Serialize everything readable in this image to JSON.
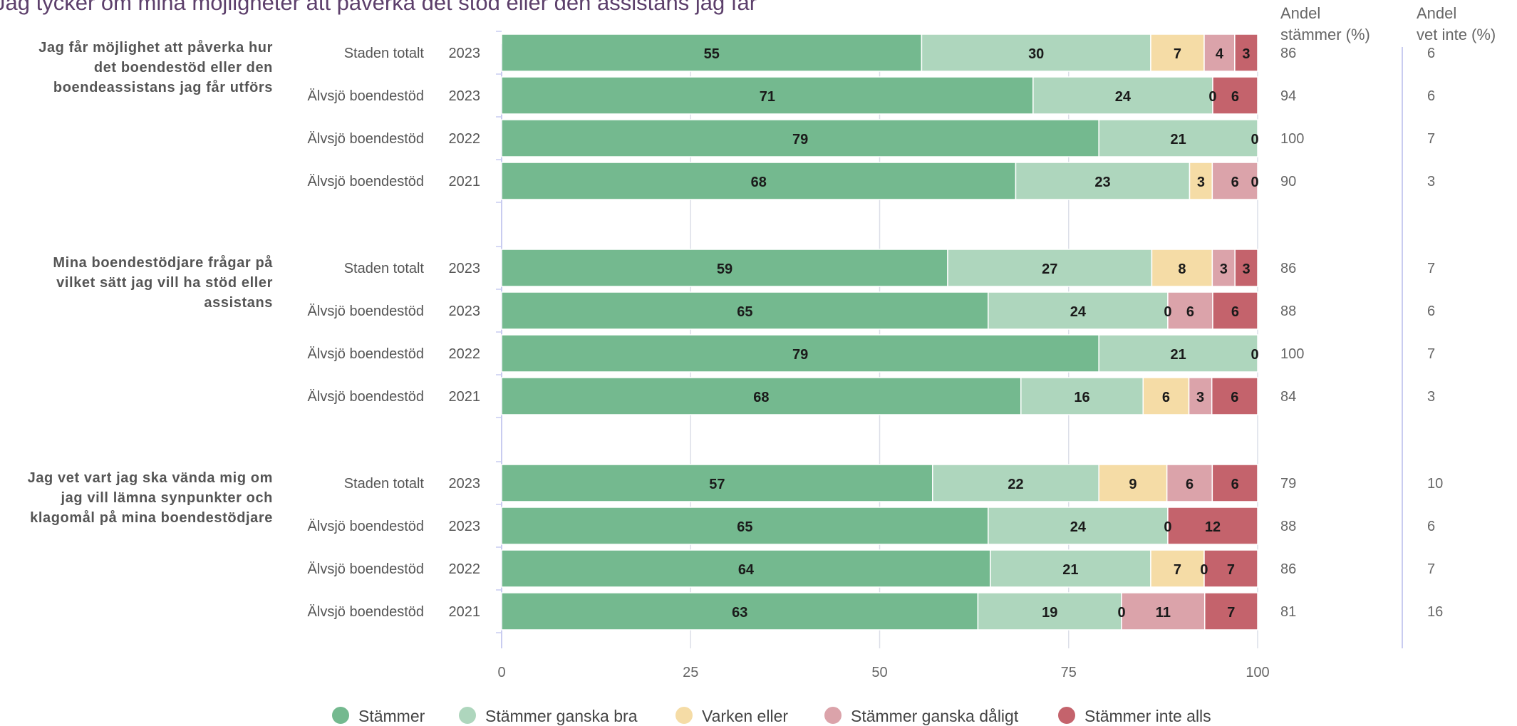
{
  "chart_data": {
    "type": "bar",
    "orientation": "horizontal",
    "stacked": true,
    "title": "Jag tycker om mina möjligheter att påverka det stöd eller den assistans jag får",
    "xlim": [
      0,
      100
    ],
    "x_ticks": [
      "0",
      "25",
      "50",
      "75",
      "100"
    ],
    "grid": true,
    "legend_position": "bottom",
    "series": [
      {
        "name": "Stämmer",
        "color": "#74b98f"
      },
      {
        "name": "Stämmer ganska bra",
        "color": "#aed6bd"
      },
      {
        "name": "Varken eller",
        "color": "#f5dca6"
      },
      {
        "name": "Stämmer ganska dåligt",
        "color": "#dba3aa"
      },
      {
        "name": "Stämmer inte alls",
        "color": "#c4636c"
      }
    ],
    "columns": [
      {
        "line1": "Andel",
        "line2": "stämmer (%)"
      },
      {
        "line1": "Andel",
        "line2": "vet inte (%)"
      }
    ],
    "groups": [
      {
        "question": [
          "Jag får möjlighet att påverka hur",
          "det boendestöd eller den",
          "boendeassistans jag får utförs"
        ],
        "rows": [
          {
            "unit": "Staden totalt",
            "year": "2023",
            "values": [
              55,
              30,
              7,
              4,
              3
            ],
            "andel_stammer": "86",
            "andel_vet_inte": "6"
          },
          {
            "unit": "Älvsjö boendestöd",
            "year": "2023",
            "values": [
              71,
              24,
              0,
              0,
              6
            ],
            "labels": [
              "71",
              "24",
              "0",
              "",
              "6"
            ],
            "andel_stammer": "94",
            "andel_vet_inte": "6"
          },
          {
            "unit": "Älvsjö boendestöd",
            "year": "2022",
            "values": [
              79,
              21,
              0,
              0,
              0
            ],
            "labels": [
              "79",
              "21",
              "",
              "",
              "0"
            ],
            "andel_stammer": "100",
            "andel_vet_inte": "7"
          },
          {
            "unit": "Älvsjö boendestöd",
            "year": "2021",
            "values": [
              68,
              23,
              3,
              6,
              0
            ],
            "andel_stammer": "90",
            "andel_vet_inte": "3"
          }
        ]
      },
      {
        "question": [
          "Mina boendestödjare frågar på",
          "vilket sätt jag vill ha stöd eller",
          "assistans"
        ],
        "rows": [
          {
            "unit": "Staden totalt",
            "year": "2023",
            "values": [
              59,
              27,
              8,
              3,
              3
            ],
            "andel_stammer": "86",
            "andel_vet_inte": "7"
          },
          {
            "unit": "Älvsjö boendestöd",
            "year": "2023",
            "values": [
              65,
              24,
              0,
              6,
              6
            ],
            "andel_stammer": "88",
            "andel_vet_inte": "6"
          },
          {
            "unit": "Älvsjö boendestöd",
            "year": "2022",
            "values": [
              79,
              21,
              0,
              0,
              0
            ],
            "labels": [
              "79",
              "21",
              "",
              "",
              "0"
            ],
            "andel_stammer": "100",
            "andel_vet_inte": "7"
          },
          {
            "unit": "Älvsjö boendestöd",
            "year": "2021",
            "values": [
              68,
              16,
              6,
              3,
              6
            ],
            "andel_stammer": "84",
            "andel_vet_inte": "3"
          }
        ]
      },
      {
        "question": [
          "Jag vet vart jag ska vända mig om",
          "jag vill lämna synpunkter och",
          "klagomål på mina boendestödjare"
        ],
        "rows": [
          {
            "unit": "Staden totalt",
            "year": "2023",
            "values": [
              57,
              22,
              9,
              6,
              6
            ],
            "andel_stammer": "79",
            "andel_vet_inte": "10"
          },
          {
            "unit": "Älvsjö boendestöd",
            "year": "2023",
            "values": [
              65,
              24,
              0,
              0,
              12
            ],
            "labels": [
              "65",
              "24",
              "0",
              "",
              "12"
            ],
            "andel_stammer": "88",
            "andel_vet_inte": "6"
          },
          {
            "unit": "Älvsjö boendestöd",
            "year": "2022",
            "values": [
              64,
              21,
              7,
              0,
              7
            ],
            "andel_stammer": "86",
            "andel_vet_inte": "7"
          },
          {
            "unit": "Älvsjö boendestöd",
            "year": "2021",
            "values": [
              63,
              19,
              0,
              11,
              7
            ],
            "andel_stammer": "81",
            "andel_vet_inte": "16"
          }
        ]
      }
    ]
  }
}
